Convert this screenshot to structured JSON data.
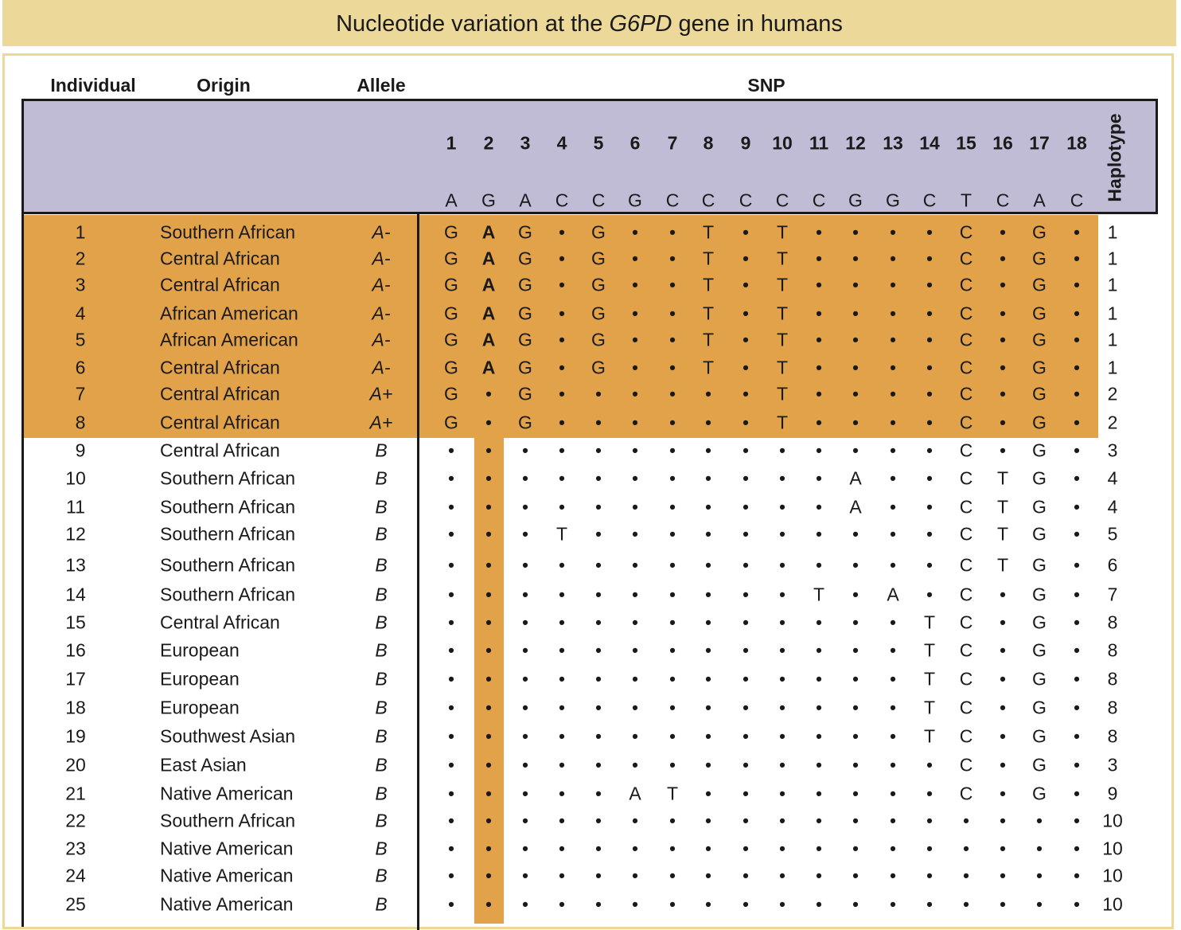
{
  "title": {
    "prefix": "Nucleotide variation at the ",
    "gene": "G6PD",
    "suffix": " gene in humans"
  },
  "headers": {
    "individual": "Individual",
    "origin": "Origin",
    "allele": "Allele",
    "snp": "SNP",
    "haplotype": "Haplotype"
  },
  "snp_numbers": [
    "1",
    "2",
    "3",
    "4",
    "5",
    "6",
    "7",
    "8",
    "9",
    "10",
    "11",
    "12",
    "13",
    "14",
    "15",
    "16",
    "17",
    "18"
  ],
  "reference": [
    "A",
    "G",
    "A",
    "C",
    "C",
    "G",
    "C",
    "C",
    "C",
    "C",
    "C",
    "G",
    "G",
    "C",
    "T",
    "C",
    "A",
    "C"
  ],
  "rows": [
    {
      "id": "1",
      "origin": "Southern African",
      "allele": "A-",
      "snps": [
        "G",
        "A",
        "G",
        "•",
        "G",
        "•",
        "•",
        "T",
        "•",
        "T",
        "•",
        "•",
        "•",
        "•",
        "C",
        "•",
        "G",
        "•"
      ],
      "haplotype": "1"
    },
    {
      "id": "2",
      "origin": "Central African",
      "allele": "A-",
      "snps": [
        "G",
        "A",
        "G",
        "•",
        "G",
        "•",
        "•",
        "T",
        "•",
        "T",
        "•",
        "•",
        "•",
        "•",
        "C",
        "•",
        "G",
        "•"
      ],
      "haplotype": "1"
    },
    {
      "id": "3",
      "origin": "Central African",
      "allele": "A-",
      "snps": [
        "G",
        "A",
        "G",
        "•",
        "G",
        "•",
        "•",
        "T",
        "•",
        "T",
        "•",
        "•",
        "•",
        "•",
        "C",
        "•",
        "G",
        "•"
      ],
      "haplotype": "1"
    },
    {
      "id": "4",
      "origin": "African American",
      "allele": "A-",
      "snps": [
        "G",
        "A",
        "G",
        "•",
        "G",
        "•",
        "•",
        "T",
        "•",
        "T",
        "•",
        "•",
        "•",
        "•",
        "C",
        "•",
        "G",
        "•"
      ],
      "haplotype": "1"
    },
    {
      "id": "5",
      "origin": "African American",
      "allele": "A-",
      "snps": [
        "G",
        "A",
        "G",
        "•",
        "G",
        "•",
        "•",
        "T",
        "•",
        "T",
        "•",
        "•",
        "•",
        "•",
        "C",
        "•",
        "G",
        "•"
      ],
      "haplotype": "1"
    },
    {
      "id": "6",
      "origin": "Central African",
      "allele": "A-",
      "snps": [
        "G",
        "A",
        "G",
        "•",
        "G",
        "•",
        "•",
        "T",
        "•",
        "T",
        "•",
        "•",
        "•",
        "•",
        "C",
        "•",
        "G",
        "•"
      ],
      "haplotype": "1"
    },
    {
      "id": "7",
      "origin": "Central African",
      "allele": "A+",
      "snps": [
        "G",
        "•",
        "G",
        "•",
        "•",
        "•",
        "•",
        "•",
        "•",
        "T",
        "•",
        "•",
        "•",
        "•",
        "C",
        "•",
        "G",
        "•"
      ],
      "haplotype": "2"
    },
    {
      "id": "8",
      "origin": "Central African",
      "allele": "A+",
      "snps": [
        "G",
        "•",
        "G",
        "•",
        "•",
        "•",
        "•",
        "•",
        "•",
        "T",
        "•",
        "•",
        "•",
        "•",
        "C",
        "•",
        "G",
        "•"
      ],
      "haplotype": "2"
    },
    {
      "id": "9",
      "origin": "Central African",
      "allele": "B",
      "snps": [
        "•",
        "•",
        "•",
        "•",
        "•",
        "•",
        "•",
        "•",
        "•",
        "•",
        "•",
        "•",
        "•",
        "•",
        "C",
        "•",
        "G",
        "•"
      ],
      "haplotype": "3"
    },
    {
      "id": "10",
      "origin": "Southern African",
      "allele": "B",
      "snps": [
        "•",
        "•",
        "•",
        "•",
        "•",
        "•",
        "•",
        "•",
        "•",
        "•",
        "•",
        "A",
        "•",
        "•",
        "C",
        "T",
        "G",
        "•"
      ],
      "haplotype": "4"
    },
    {
      "id": "11",
      "origin": "Southern African",
      "allele": "B",
      "snps": [
        "•",
        "•",
        "•",
        "•",
        "•",
        "•",
        "•",
        "•",
        "•",
        "•",
        "•",
        "A",
        "•",
        "•",
        "C",
        "T",
        "G",
        "•"
      ],
      "haplotype": "4"
    },
    {
      "id": "12",
      "origin": "Southern African",
      "allele": "B",
      "snps": [
        "•",
        "•",
        "•",
        "T",
        "•",
        "•",
        "•",
        "•",
        "•",
        "•",
        "•",
        "•",
        "•",
        "•",
        "C",
        "T",
        "G",
        "•"
      ],
      "haplotype": "5"
    },
    {
      "id": "13",
      "origin": "Southern African",
      "allele": "B",
      "snps": [
        "•",
        "•",
        "•",
        "•",
        "•",
        "•",
        "•",
        "•",
        "•",
        "•",
        "•",
        "•",
        "•",
        "•",
        "C",
        "T",
        "G",
        "•"
      ],
      "haplotype": "6"
    },
    {
      "id": "14",
      "origin": "Southern African",
      "allele": "B",
      "snps": [
        "•",
        "•",
        "•",
        "•",
        "•",
        "•",
        "•",
        "•",
        "•",
        "•",
        "T",
        "•",
        "A",
        "•",
        "C",
        "•",
        "G",
        "•"
      ],
      "haplotype": "7"
    },
    {
      "id": "15",
      "origin": "Central African",
      "allele": "B",
      "snps": [
        "•",
        "•",
        "•",
        "•",
        "•",
        "•",
        "•",
        "•",
        "•",
        "•",
        "•",
        "•",
        "•",
        "T",
        "C",
        "•",
        "G",
        "•"
      ],
      "haplotype": "8"
    },
    {
      "id": "16",
      "origin": "European",
      "allele": "B",
      "snps": [
        "•",
        "•",
        "•",
        "•",
        "•",
        "•",
        "•",
        "•",
        "•",
        "•",
        "•",
        "•",
        "•",
        "T",
        "C",
        "•",
        "G",
        "•"
      ],
      "haplotype": "8"
    },
    {
      "id": "17",
      "origin": "European",
      "allele": "B",
      "snps": [
        "•",
        "•",
        "•",
        "•",
        "•",
        "•",
        "•",
        "•",
        "•",
        "•",
        "•",
        "•",
        "•",
        "T",
        "C",
        "•",
        "G",
        "•"
      ],
      "haplotype": "8"
    },
    {
      "id": "18",
      "origin": "European",
      "allele": "B",
      "snps": [
        "•",
        "•",
        "•",
        "•",
        "•",
        "•",
        "•",
        "•",
        "•",
        "•",
        "•",
        "•",
        "•",
        "T",
        "C",
        "•",
        "G",
        "•"
      ],
      "haplotype": "8"
    },
    {
      "id": "19",
      "origin": "Southwest Asian",
      "allele": "B",
      "snps": [
        "•",
        "•",
        "•",
        "•",
        "•",
        "•",
        "•",
        "•",
        "•",
        "•",
        "•",
        "•",
        "•",
        "T",
        "C",
        "•",
        "G",
        "•"
      ],
      "haplotype": "8"
    },
    {
      "id": "20",
      "origin": "East Asian",
      "allele": "B",
      "snps": [
        "•",
        "•",
        "•",
        "•",
        "•",
        "•",
        "•",
        "•",
        "•",
        "•",
        "•",
        "•",
        "•",
        "•",
        "C",
        "•",
        "G",
        "•"
      ],
      "haplotype": "3"
    },
    {
      "id": "21",
      "origin": "Native American",
      "allele": "B",
      "snps": [
        "•",
        "•",
        "•",
        "•",
        "•",
        "A",
        "T",
        "•",
        "•",
        "•",
        "•",
        "•",
        "•",
        "•",
        "C",
        "•",
        "G",
        "•"
      ],
      "haplotype": "9"
    },
    {
      "id": "22",
      "origin": "Southern African",
      "allele": "B",
      "snps": [
        "•",
        "•",
        "•",
        "•",
        "•",
        "•",
        "•",
        "•",
        "•",
        "•",
        "•",
        "•",
        "•",
        "•",
        "•",
        "•",
        "•",
        "•"
      ],
      "haplotype": "10"
    },
    {
      "id": "23",
      "origin": "Native American",
      "allele": "B",
      "snps": [
        "•",
        "•",
        "•",
        "•",
        "•",
        "•",
        "•",
        "•",
        "•",
        "•",
        "•",
        "•",
        "•",
        "•",
        "•",
        "•",
        "•",
        "•"
      ],
      "haplotype": "10"
    },
    {
      "id": "24",
      "origin": "Native American",
      "allele": "B",
      "snps": [
        "•",
        "•",
        "•",
        "•",
        "•",
        "•",
        "•",
        "•",
        "•",
        "•",
        "•",
        "•",
        "•",
        "•",
        "•",
        "•",
        "•",
        "•"
      ],
      "haplotype": "10"
    },
    {
      "id": "25",
      "origin": "Native American",
      "allele": "B",
      "snps": [
        "•",
        "•",
        "•",
        "•",
        "•",
        "•",
        "•",
        "•",
        "•",
        "•",
        "•",
        "•",
        "•",
        "•",
        "•",
        "•",
        "•",
        "•"
      ],
      "haplotype": "10"
    }
  ]
}
